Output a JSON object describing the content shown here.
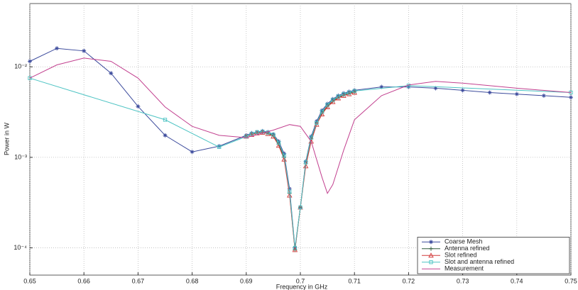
{
  "chart_data": {
    "type": "line",
    "ylog": true,
    "grid": true,
    "legend": "lower right",
    "xlabel": "Frequency in GHz",
    "ylabel": "Power in W",
    "xlim": [
      0.65,
      0.75
    ],
    "xticks": [
      0.65,
      0.66,
      0.67,
      0.68,
      0.69,
      0.7,
      0.71,
      0.72,
      0.73,
      0.74,
      0.75
    ],
    "ylim": [
      5e-05,
      0.05
    ],
    "yticks": [
      {
        "value": 0.0001,
        "label": "10⁻⁴"
      },
      {
        "value": 0.001,
        "label": "10⁻³"
      },
      {
        "value": 0.01,
        "label": "10⁻²"
      }
    ],
    "series": [
      {
        "name": "Coarse Mesh",
        "color": "#3b4a9c",
        "marker": "star",
        "x": [
          0.65,
          0.655,
          0.66,
          0.665,
          0.67,
          0.675,
          0.68,
          0.685,
          0.69,
          0.691,
          0.692,
          0.693,
          0.694,
          0.695,
          0.696,
          0.697,
          0.698,
          0.699,
          0.7,
          0.701,
          0.702,
          0.703,
          0.704,
          0.705,
          0.706,
          0.707,
          0.708,
          0.709,
          0.71,
          0.715,
          0.72,
          0.725,
          0.73,
          0.735,
          0.74,
          0.745,
          0.75
        ],
        "values": [
          0.0115,
          0.016,
          0.015,
          0.0085,
          0.00365,
          0.00175,
          0.00115,
          0.00133,
          0.00175,
          0.00185,
          0.0019,
          0.00195,
          0.0019,
          0.0018,
          0.0015,
          0.0011,
          0.00045,
          0.0001,
          0.00028,
          0.0009,
          0.0017,
          0.0025,
          0.0033,
          0.0039,
          0.0044,
          0.0048,
          0.0051,
          0.0053,
          0.0055,
          0.006,
          0.006,
          0.0058,
          0.0055,
          0.0052,
          0.005,
          0.0048,
          0.0046
        ]
      },
      {
        "name": "Antenna refined",
        "color": "#2f5a3a",
        "marker": "plus",
        "x": [
          0.69,
          0.691,
          0.692,
          0.693,
          0.694,
          0.695,
          0.696,
          0.697,
          0.698,
          0.699,
          0.7,
          0.701,
          0.702,
          0.703,
          0.704,
          0.705,
          0.706,
          0.707,
          0.708,
          0.709,
          0.71
        ],
        "values": [
          0.0017,
          0.0018,
          0.00188,
          0.0019,
          0.00185,
          0.00175,
          0.0014,
          0.001,
          0.0004,
          9.5e-05,
          0.00028,
          0.00085,
          0.0016,
          0.0024,
          0.0031,
          0.0037,
          0.0042,
          0.0046,
          0.0049,
          0.0051,
          0.0053
        ]
      },
      {
        "name": "Slot refined",
        "color": "#d23a3a",
        "marker": "triangle",
        "x": [
          0.69,
          0.691,
          0.692,
          0.693,
          0.694,
          0.695,
          0.696,
          0.697,
          0.698,
          0.699,
          0.7,
          0.701,
          0.702,
          0.703,
          0.704,
          0.705,
          0.706,
          0.707,
          0.708,
          0.709,
          0.71
        ],
        "values": [
          0.0017,
          0.00178,
          0.00185,
          0.00188,
          0.00182,
          0.0017,
          0.00135,
          0.00095,
          0.00038,
          9.5e-05,
          0.00028,
          0.0008,
          0.0015,
          0.0023,
          0.003,
          0.0036,
          0.0041,
          0.0045,
          0.0048,
          0.005,
          0.0052
        ]
      },
      {
        "name": "Slot and antenna refined",
        "color": "#4cc3c3",
        "marker": "square",
        "x": [
          0.65,
          0.675,
          0.685,
          0.69,
          0.691,
          0.692,
          0.693,
          0.694,
          0.695,
          0.696,
          0.697,
          0.698,
          0.699,
          0.7,
          0.701,
          0.702,
          0.703,
          0.704,
          0.705,
          0.706,
          0.707,
          0.708,
          0.709,
          0.71,
          0.72,
          0.75
        ],
        "values": [
          0.0075,
          0.0026,
          0.0013,
          0.0017,
          0.00182,
          0.0019,
          0.00192,
          0.00188,
          0.00178,
          0.00145,
          0.00105,
          0.00042,
          0.0001,
          0.00028,
          0.00088,
          0.00165,
          0.0024,
          0.0032,
          0.0038,
          0.0043,
          0.0047,
          0.005,
          0.0052,
          0.0054,
          0.0062,
          0.0052
        ]
      },
      {
        "name": "Measurement",
        "color": "#c2408f",
        "marker": null,
        "x": [
          0.65,
          0.655,
          0.66,
          0.665,
          0.67,
          0.675,
          0.68,
          0.685,
          0.69,
          0.695,
          0.698,
          0.7,
          0.702,
          0.704,
          0.705,
          0.706,
          0.708,
          0.71,
          0.715,
          0.72,
          0.725,
          0.73,
          0.74,
          0.75
        ],
        "values": [
          0.0075,
          0.0105,
          0.0125,
          0.0115,
          0.0075,
          0.0036,
          0.0022,
          0.00175,
          0.00165,
          0.002,
          0.0023,
          0.0022,
          0.0015,
          0.0006,
          0.0004,
          0.0005,
          0.0012,
          0.0026,
          0.0048,
          0.0063,
          0.0069,
          0.0066,
          0.0058,
          0.0052
        ]
      }
    ]
  }
}
